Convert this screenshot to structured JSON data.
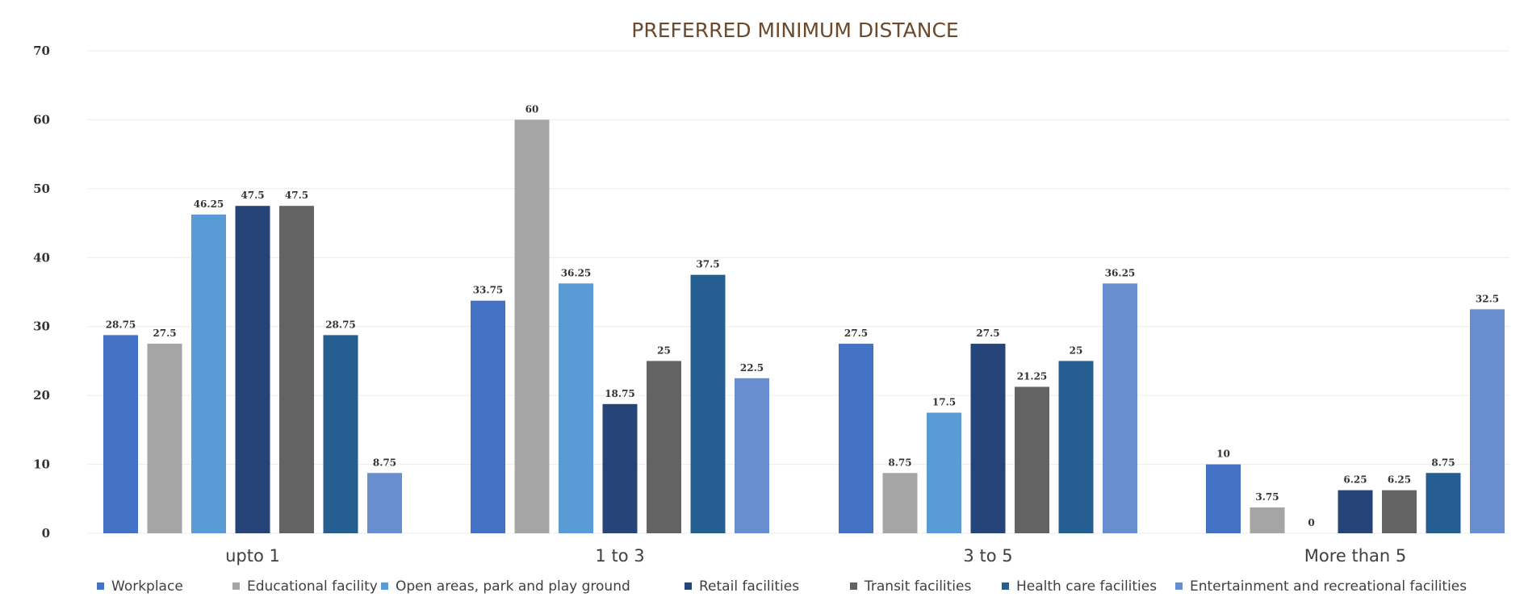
{
  "chart_data": {
    "type": "bar",
    "title": "PREFERRED MINIMUM DISTANCE",
    "xlabel": "",
    "ylabel": "",
    "ylim": [
      0,
      70
    ],
    "yticks": [
      0,
      10,
      20,
      30,
      40,
      50,
      60,
      70
    ],
    "grid": true,
    "legend_position": "bottom",
    "categories": [
      "upto 1",
      "1 to 3",
      "3 to 5",
      "More than 5"
    ],
    "series": [
      {
        "name": "Workplace",
        "color": "#4472c4",
        "values": [
          28.75,
          33.75,
          27.5,
          10
        ]
      },
      {
        "name": "Educational facility",
        "color": "#a5a5a5",
        "values": [
          27.5,
          60,
          8.75,
          3.75
        ]
      },
      {
        "name": "Open areas, park and play ground",
        "color": "#5b9bd5",
        "values": [
          46.25,
          36.25,
          17.5,
          0
        ]
      },
      {
        "name": "Retail facilities",
        "color": "#264478",
        "values": [
          47.5,
          18.75,
          27.5,
          6.25
        ]
      },
      {
        "name": "Transit facilities",
        "color": "#636363",
        "values": [
          47.5,
          25,
          21.25,
          6.25
        ]
      },
      {
        "name": "Health care facilities",
        "color": "#255e91",
        "values": [
          28.75,
          37.5,
          25,
          8.75
        ]
      },
      {
        "name": "Entertainment and recreational facilities",
        "color": "#698ed0",
        "values": [
          8.75,
          22.5,
          36.25,
          32.5
        ]
      }
    ],
    "data_labels": [
      [
        "28.75",
        "33.75",
        "27.5",
        "10"
      ],
      [
        "27.5",
        "60",
        "8.75",
        "3.75"
      ],
      [
        "46.25",
        "36.25",
        "17.5",
        "0"
      ],
      [
        "47.5",
        "18.75",
        "27.5",
        "6.25"
      ],
      [
        "47.5",
        "25",
        "21.25",
        "6.25"
      ],
      [
        "28.75",
        "37.5",
        "25",
        "8.75"
      ],
      [
        "8.75",
        "22.5",
        "36.25",
        "32.5"
      ]
    ]
  }
}
